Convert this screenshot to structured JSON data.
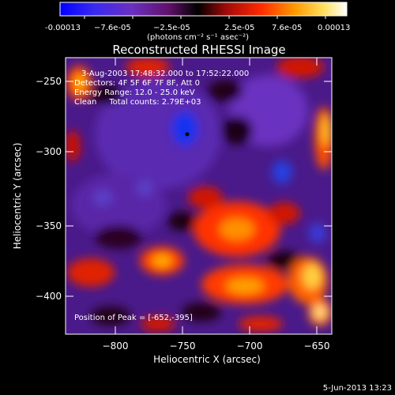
{
  "colorbar": {
    "tick_labels": [
      "-0.00013",
      "−7.6e-05",
      "−2.5e-05",
      "2.5e-05",
      "7.6e-05",
      "0.00013"
    ],
    "unit_label": "(photons cm⁻² s⁻¹ asec⁻²)",
    "colors": [
      "#0000ff",
      "#6a2cc8",
      "#6a0a6a",
      "#000000",
      "#9a0a0a",
      "#ff2a00",
      "#ff9a00",
      "#ffffa0",
      "#ffffff"
    ]
  },
  "image": {
    "title": "Reconstructed RHESSI Image",
    "info_lines": [
      "3-Aug-2003 17:48:32.000 to 17:52:22.000",
      "Detectors: 4F 5F 6F 7F 8F, Att 0",
      "Energy Range: 12.0 - 25.0 keV",
      "Clean     Total counts: 2.79E+03"
    ],
    "peak_label": "Position of Peak = [-652,-395]",
    "x_axis_label": "Heliocentric X (arcsec)",
    "y_axis_label": "Heliocentric Y (arcsec)",
    "x_tick_labels": [
      "−800",
      "−750",
      "−700",
      "−650"
    ],
    "y_tick_labels": [
      "−250",
      "−300",
      "−350",
      "−400"
    ],
    "x_range": [
      -838,
      -640
    ],
    "y_range": [
      -425,
      -228
    ]
  },
  "footer": {
    "date": "5-Jun-2013 13:23"
  }
}
